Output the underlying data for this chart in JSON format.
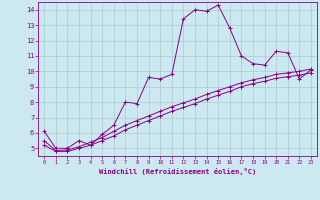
{
  "xlabel": "Windchill (Refroidissement éolien,°C)",
  "bg_color": "#cce8f0",
  "line_color": "#880088",
  "grid_color": "#aacccc",
  "xlim": [
    -0.5,
    23.5
  ],
  "ylim": [
    4.5,
    14.5
  ],
  "xticks": [
    0,
    1,
    2,
    3,
    4,
    5,
    6,
    7,
    8,
    9,
    10,
    11,
    12,
    13,
    14,
    15,
    16,
    17,
    18,
    19,
    20,
    21,
    22,
    23
  ],
  "yticks": [
    5,
    6,
    7,
    8,
    9,
    10,
    11,
    12,
    13,
    14
  ],
  "series1_x": [
    0,
    1,
    2,
    3,
    4,
    5,
    6,
    7,
    8,
    9,
    10,
    11,
    12,
    13,
    14,
    15,
    16,
    17,
    18,
    19,
    20,
    21,
    22,
    23
  ],
  "series1_y": [
    6.1,
    5.0,
    5.0,
    5.5,
    5.2,
    5.9,
    6.5,
    8.0,
    7.9,
    9.6,
    9.5,
    9.8,
    13.4,
    14.0,
    13.9,
    14.3,
    12.8,
    11.0,
    10.5,
    10.4,
    11.3,
    11.2,
    9.5,
    10.1
  ],
  "series2_x": [
    0,
    1,
    2,
    3,
    4,
    5,
    6,
    7,
    8,
    9,
    10,
    11,
    12,
    13,
    14,
    15,
    16,
    17,
    18,
    19,
    20,
    21,
    22,
    23
  ],
  "series2_y": [
    5.5,
    4.85,
    4.9,
    5.1,
    5.4,
    5.7,
    6.1,
    6.5,
    6.8,
    7.1,
    7.4,
    7.7,
    7.95,
    8.2,
    8.5,
    8.75,
    9.0,
    9.25,
    9.45,
    9.6,
    9.8,
    9.9,
    10.0,
    10.15
  ],
  "series3_x": [
    0,
    1,
    2,
    3,
    4,
    5,
    6,
    7,
    8,
    9,
    10,
    11,
    12,
    13,
    14,
    15,
    16,
    17,
    18,
    19,
    20,
    21,
    22,
    23
  ],
  "series3_y": [
    5.2,
    4.8,
    4.8,
    5.0,
    5.2,
    5.5,
    5.8,
    6.2,
    6.5,
    6.8,
    7.1,
    7.4,
    7.65,
    7.9,
    8.2,
    8.45,
    8.7,
    9.0,
    9.2,
    9.35,
    9.55,
    9.65,
    9.75,
    9.9
  ]
}
